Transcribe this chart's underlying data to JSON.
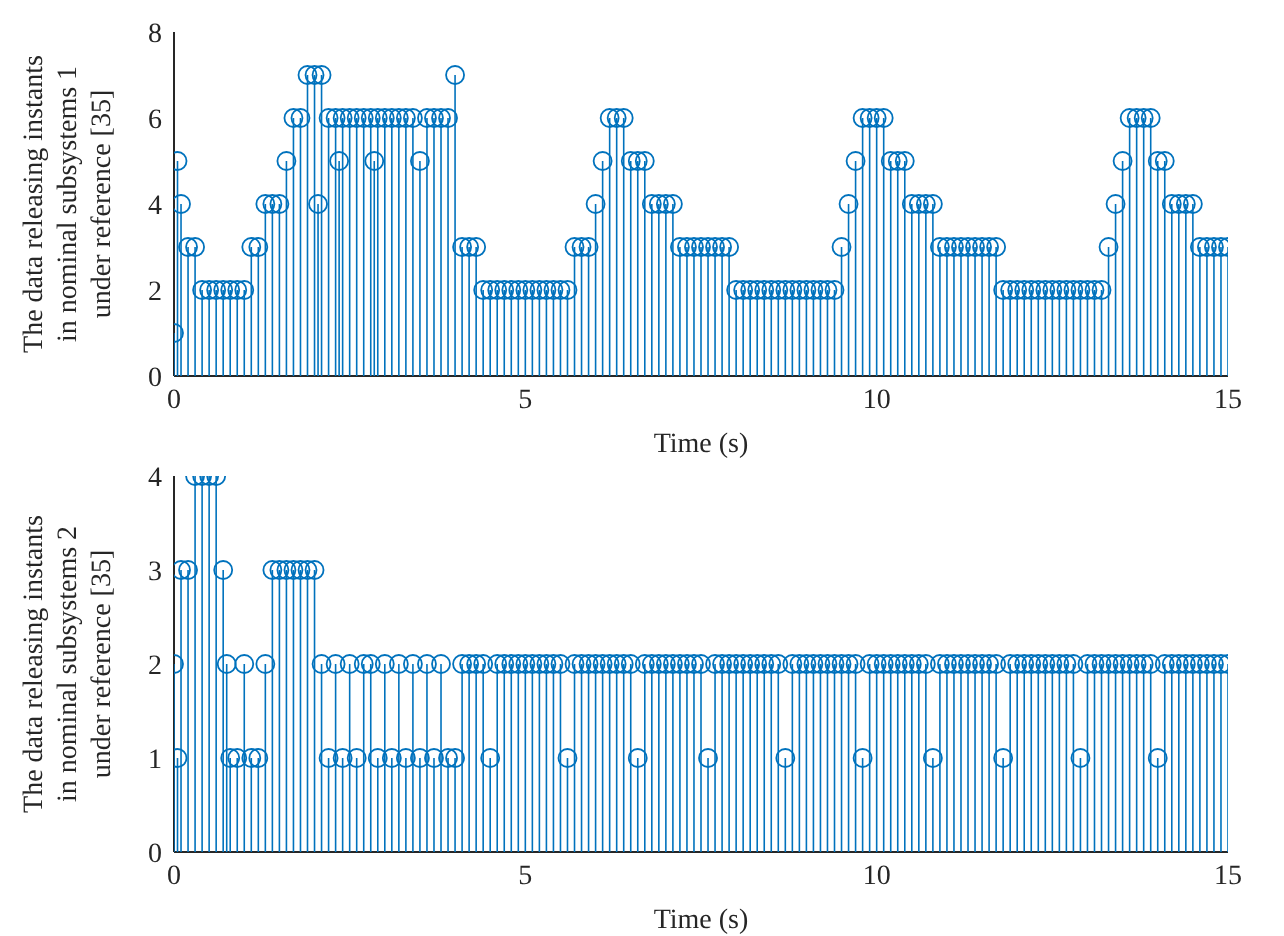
{
  "chart_data": [
    {
      "type": "lollipop",
      "xlabel": "Time (s)",
      "ylabel": "The data releasing instants\nin nominal subsystems 1\nunder reference [35]",
      "xlim": [
        0,
        15
      ],
      "xticks": [
        0,
        5,
        10,
        15
      ],
      "ylim": [
        0,
        8
      ],
      "yticks": [
        0,
        2,
        4,
        6,
        8
      ],
      "legend": false,
      "marker": "circle",
      "series": [
        {
          "color": "#0072bd",
          "x": [
            0,
            0.05,
            0.1,
            0.2,
            0.3,
            0.4,
            0.5,
            0.6,
            0.7,
            0.8,
            0.9,
            1.0,
            1.1,
            1.2,
            1.3,
            1.4,
            1.5,
            1.6,
            1.7,
            1.8,
            1.9,
            2.0,
            2.05,
            2.1,
            2.2,
            2.3,
            2.35,
            2.4,
            2.5,
            2.6,
            2.7,
            2.8,
            2.85,
            2.9,
            3.0,
            3.1,
            3.2,
            3.3,
            3.4,
            3.5,
            3.6,
            3.7,
            3.8,
            3.9,
            4.0,
            4.1,
            4.2,
            4.3,
            4.4,
            4.5,
            4.6,
            4.7,
            4.8,
            4.9,
            5.0,
            5.1,
            5.2,
            5.3,
            5.4,
            5.5,
            5.6,
            5.7,
            5.8,
            5.9,
            6.0,
            6.1,
            6.2,
            6.3,
            6.4,
            6.5,
            6.6,
            6.7,
            6.8,
            6.9,
            7.0,
            7.1,
            7.2,
            7.3,
            7.4,
            7.5,
            7.6,
            7.7,
            7.8,
            7.9,
            8.0,
            8.1,
            8.2,
            8.3,
            8.4,
            8.5,
            8.6,
            8.7,
            8.8,
            8.9,
            9.0,
            9.1,
            9.2,
            9.3,
            9.4,
            9.5,
            9.6,
            9.7,
            9.8,
            9.9,
            10.0,
            10.1,
            10.2,
            10.3,
            10.4,
            10.5,
            10.6,
            10.7,
            10.8,
            10.9,
            11.0,
            11.1,
            11.2,
            11.3,
            11.4,
            11.5,
            11.6,
            11.7,
            11.8,
            11.9,
            12.0,
            12.1,
            12.2,
            12.3,
            12.4,
            12.5,
            12.6,
            12.7,
            12.8,
            12.9,
            13.0,
            13.1,
            13.2,
            13.3,
            13.4,
            13.5,
            13.6,
            13.7,
            13.8,
            13.9,
            14.0,
            14.1,
            14.2,
            14.3,
            14.4,
            14.5,
            14.6,
            14.7,
            14.8,
            14.9,
            15.0
          ],
          "values": [
            1,
            5,
            4,
            3,
            3,
            2,
            2,
            2,
            2,
            2,
            2,
            2,
            3,
            3,
            4,
            4,
            4,
            5,
            6,
            6,
            7,
            7,
            4,
            7,
            6,
            6,
            5,
            6,
            6,
            6,
            6,
            6,
            5,
            6,
            6,
            6,
            6,
            6,
            6,
            5,
            6,
            6,
            6,
            6,
            7,
            3,
            3,
            3,
            2,
            2,
            2,
            2,
            2,
            2,
            2,
            2,
            2,
            2,
            2,
            2,
            2,
            3,
            3,
            3,
            4,
            5,
            6,
            6,
            6,
            5,
            5,
            5,
            4,
            4,
            4,
            4,
            3,
            3,
            3,
            3,
            3,
            3,
            3,
            3,
            2,
            2,
            2,
            2,
            2,
            2,
            2,
            2,
            2,
            2,
            2,
            2,
            2,
            2,
            2,
            3,
            4,
            5,
            6,
            6,
            6,
            6,
            5,
            5,
            5,
            4,
            4,
            4,
            4,
            3,
            3,
            3,
            3,
            3,
            3,
            3,
            3,
            3,
            2,
            2,
            2,
            2,
            2,
            2,
            2,
            2,
            2,
            2,
            2,
            2,
            2,
            2,
            2,
            3,
            4,
            5,
            6,
            6,
            6,
            6,
            5,
            5,
            4,
            4,
            4,
            4,
            3,
            3,
            3,
            3,
            3
          ]
        }
      ]
    },
    {
      "type": "lollipop",
      "xlabel": "Time (s)",
      "ylabel": "The data releasing instants\nin nominal subsystems 2\nunder reference [35]",
      "xlim": [
        0,
        15
      ],
      "xticks": [
        0,
        5,
        10,
        15
      ],
      "ylim": [
        0,
        4
      ],
      "yticks": [
        0,
        1,
        2,
        3,
        4
      ],
      "legend": false,
      "marker": "circle",
      "series": [
        {
          "color": "#0072bd",
          "x": [
            0,
            0.05,
            0.1,
            0.2,
            0.3,
            0.4,
            0.5,
            0.6,
            0.7,
            0.75,
            0.8,
            0.9,
            1.0,
            1.1,
            1.2,
            1.3,
            1.4,
            1.5,
            1.6,
            1.7,
            1.8,
            1.9,
            2.0,
            2.1,
            2.2,
            2.3,
            2.4,
            2.5,
            2.6,
            2.7,
            2.8,
            2.9,
            3.0,
            3.1,
            3.2,
            3.3,
            3.4,
            3.5,
            3.6,
            3.7,
            3.8,
            3.9,
            4.0,
            4.1,
            4.2,
            4.3,
            4.4,
            4.5,
            4.6,
            4.7,
            4.8,
            4.9,
            5.0,
            5.1,
            5.2,
            5.3,
            5.4,
            5.5,
            5.6,
            5.7,
            5.8,
            5.9,
            6.0,
            6.1,
            6.2,
            6.3,
            6.4,
            6.5,
            6.6,
            6.7,
            6.8,
            6.9,
            7.0,
            7.1,
            7.2,
            7.3,
            7.4,
            7.5,
            7.6,
            7.7,
            7.8,
            7.9,
            8.0,
            8.1,
            8.2,
            8.3,
            8.4,
            8.5,
            8.6,
            8.7,
            8.8,
            8.9,
            9.0,
            9.1,
            9.2,
            9.3,
            9.4,
            9.5,
            9.6,
            9.7,
            9.8,
            9.9,
            10.0,
            10.1,
            10.2,
            10.3,
            10.4,
            10.5,
            10.6,
            10.7,
            10.8,
            10.9,
            11.0,
            11.1,
            11.2,
            11.3,
            11.4,
            11.5,
            11.6,
            11.7,
            11.8,
            11.9,
            12.0,
            12.1,
            12.2,
            12.3,
            12.4,
            12.5,
            12.6,
            12.7,
            12.8,
            12.9,
            13.0,
            13.1,
            13.2,
            13.3,
            13.4,
            13.5,
            13.6,
            13.7,
            13.8,
            13.9,
            14.0,
            14.1,
            14.2,
            14.3,
            14.4,
            14.5,
            14.6,
            14.7,
            14.8,
            14.9,
            15.0
          ],
          "values": [
            2,
            1,
            3,
            3,
            4,
            4,
            4,
            4,
            3,
            2,
            1,
            1,
            2,
            1,
            1,
            2,
            3,
            3,
            3,
            3,
            3,
            3,
            3,
            2,
            1,
            2,
            1,
            2,
            1,
            2,
            2,
            1,
            2,
            1,
            2,
            1,
            2,
            1,
            2,
            1,
            2,
            1,
            1,
            2,
            2,
            2,
            2,
            1,
            2,
            2,
            2,
            2,
            2,
            2,
            2,
            2,
            2,
            2,
            1,
            2,
            2,
            2,
            2,
            2,
            2,
            2,
            2,
            2,
            1,
            2,
            2,
            2,
            2,
            2,
            2,
            2,
            2,
            2,
            1,
            2,
            2,
            2,
            2,
            2,
            2,
            2,
            2,
            2,
            2,
            1,
            2,
            2,
            2,
            2,
            2,
            2,
            2,
            2,
            2,
            2,
            1,
            2,
            2,
            2,
            2,
            2,
            2,
            2,
            2,
            2,
            1,
            2,
            2,
            2,
            2,
            2,
            2,
            2,
            2,
            2,
            1,
            2,
            2,
            2,
            2,
            2,
            2,
            2,
            2,
            2,
            2,
            1,
            2,
            2,
            2,
            2,
            2,
            2,
            2,
            2,
            2,
            2,
            1,
            2,
            2,
            2,
            2,
            2,
            2,
            2,
            2,
            2,
            2
          ]
        }
      ]
    }
  ]
}
